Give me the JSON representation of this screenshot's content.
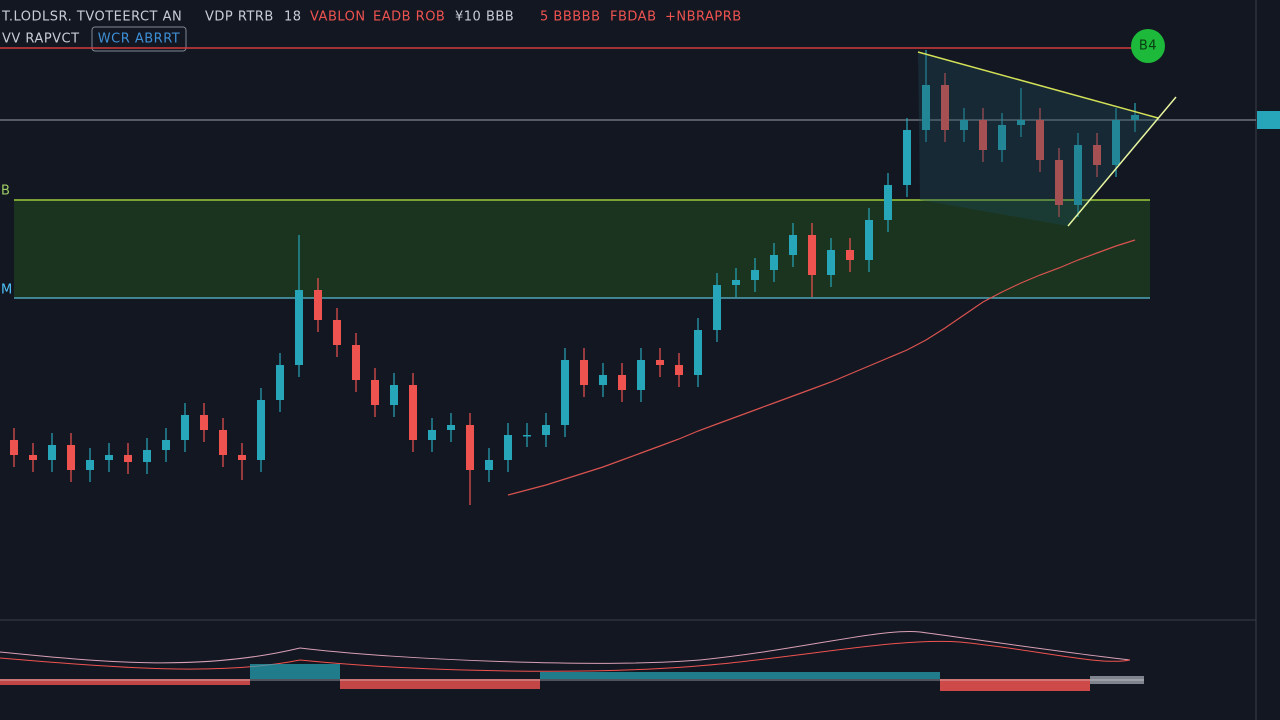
{
  "header": {
    "items": [
      {
        "text": "T.LODLSR. TVOTEERCT AN",
        "color": "#c8ccd6"
      },
      {
        "text": "VDP RTRB",
        "color": "#c8ccd6"
      },
      {
        "text": "18",
        "color": "#c8ccd6"
      },
      {
        "text": "VABLON",
        "color": "#ef5350"
      },
      {
        "text": "EADB ROB",
        "color": "#ef5350"
      },
      {
        "text": "¥10 BBB",
        "color": "#c8ccd6"
      },
      {
        "text": "5 BBBBB",
        "color": "#ef5350"
      },
      {
        "text": "FBDAB",
        "color": "#ef5350"
      },
      {
        "text": "+NBRAPRB",
        "color": "#ef5350"
      }
    ],
    "subtitle": "VV RAPVCT",
    "button": "WCR ABRRT",
    "badge": "B4",
    "zone_top_label": "B",
    "zone_bottom_label": "M"
  },
  "chart_data": {
    "type": "candlestick",
    "open": [
      180,
      165,
      160,
      175,
      150,
      160,
      165,
      158,
      170,
      180,
      205,
      190,
      165,
      160,
      220,
      255,
      330,
      300,
      275,
      240,
      215,
      235,
      180,
      190,
      195,
      150,
      160,
      185,
      185,
      195,
      260,
      235,
      245,
      230,
      260,
      255,
      245,
      290,
      335,
      340,
      350,
      365,
      385,
      345,
      370,
      360,
      400,
      435,
      490,
      535,
      490,
      500,
      470,
      495,
      500,
      460,
      415,
      475,
      455,
      500
    ],
    "high": [
      192,
      177,
      187,
      187,
      172,
      177,
      177,
      182,
      192,
      217,
      217,
      202,
      177,
      232,
      267,
      385,
      342,
      312,
      287,
      252,
      247,
      247,
      202,
      207,
      207,
      172,
      197,
      197,
      207,
      272,
      272,
      257,
      257,
      272,
      272,
      267,
      302,
      347,
      352,
      362,
      377,
      397,
      397,
      382,
      382,
      412,
      447,
      502,
      570,
      547,
      512,
      512,
      507,
      532,
      512,
      472,
      487,
      487,
      512,
      517
    ],
    "low": [
      153,
      148,
      148,
      138,
      138,
      148,
      146,
      146,
      158,
      168,
      178,
      153,
      140,
      148,
      208,
      243,
      288,
      263,
      228,
      203,
      203,
      168,
      168,
      178,
      115,
      138,
      148,
      173,
      173,
      183,
      223,
      223,
      218,
      218,
      243,
      233,
      233,
      278,
      323,
      328,
      338,
      353,
      323,
      333,
      348,
      348,
      388,
      423,
      478,
      478,
      478,
      458,
      458,
      483,
      448,
      403,
      403,
      443,
      443,
      488
    ],
    "close": [
      165,
      160,
      175,
      150,
      160,
      165,
      158,
      170,
      180,
      205,
      190,
      165,
      160,
      220,
      255,
      330,
      300,
      275,
      240,
      215,
      235,
      180,
      190,
      195,
      150,
      160,
      185,
      185,
      195,
      260,
      235,
      245,
      230,
      260,
      255,
      245,
      290,
      335,
      340,
      350,
      365,
      385,
      345,
      370,
      360,
      400,
      435,
      490,
      535,
      490,
      500,
      470,
      495,
      500,
      460,
      415,
      475,
      455,
      500,
      505
    ],
    "ylim": [
      0,
      620
    ],
    "up_color": "#26a6b8",
    "down_color": "#ef5350",
    "ma": {
      "color": "#d9534f",
      "values": [
        null,
        null,
        null,
        null,
        null,
        null,
        null,
        null,
        null,
        null,
        null,
        null,
        null,
        null,
        null,
        null,
        null,
        null,
        null,
        null,
        null,
        null,
        null,
        null,
        null,
        null,
        125,
        130,
        135,
        141,
        147,
        153,
        160,
        167,
        174,
        181,
        189,
        196,
        203,
        210,
        217,
        224,
        231,
        238,
        246,
        254,
        262,
        270,
        280,
        292,
        305,
        318,
        328,
        337,
        345,
        352,
        360,
        367,
        374,
        380
      ]
    },
    "levels": {
      "resistance": 572,
      "pivot": 500,
      "zone": [
        322,
        420
      ]
    }
  }
}
